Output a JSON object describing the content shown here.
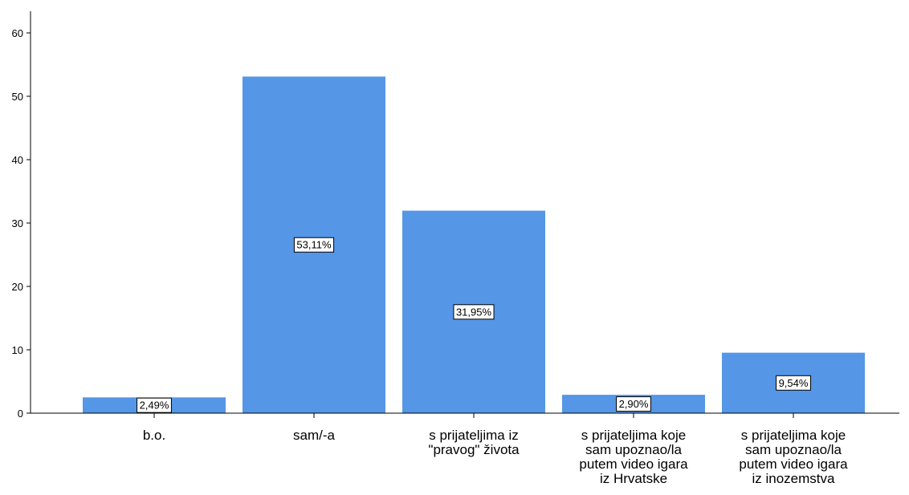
{
  "chart_data": {
    "type": "bar",
    "categories": [
      [
        "b.o."
      ],
      [
        "sam/-a"
      ],
      [
        "s prijateljima iz",
        "\"pravog\" života"
      ],
      [
        "s prijateljima koje",
        "sam upoznao/la",
        "putem video igara",
        "iz Hrvatske"
      ],
      [
        "s prijateljima koje",
        "sam upoznao/la",
        "putem video igara",
        "iz inozemstva"
      ]
    ],
    "values": [
      2.49,
      53.11,
      31.95,
      2.9,
      9.54
    ],
    "data_labels": [
      "2,49%",
      "53,11%",
      "31,95%",
      "2,90%",
      "9,54%"
    ],
    "yticks": [
      "0",
      "10",
      "20",
      "30",
      "40",
      "50",
      "60"
    ],
    "ylim": [
      0,
      60
    ],
    "title": "",
    "xlabel": "",
    "ylabel": "",
    "grid": false,
    "bar_color": "#5596e6"
  }
}
